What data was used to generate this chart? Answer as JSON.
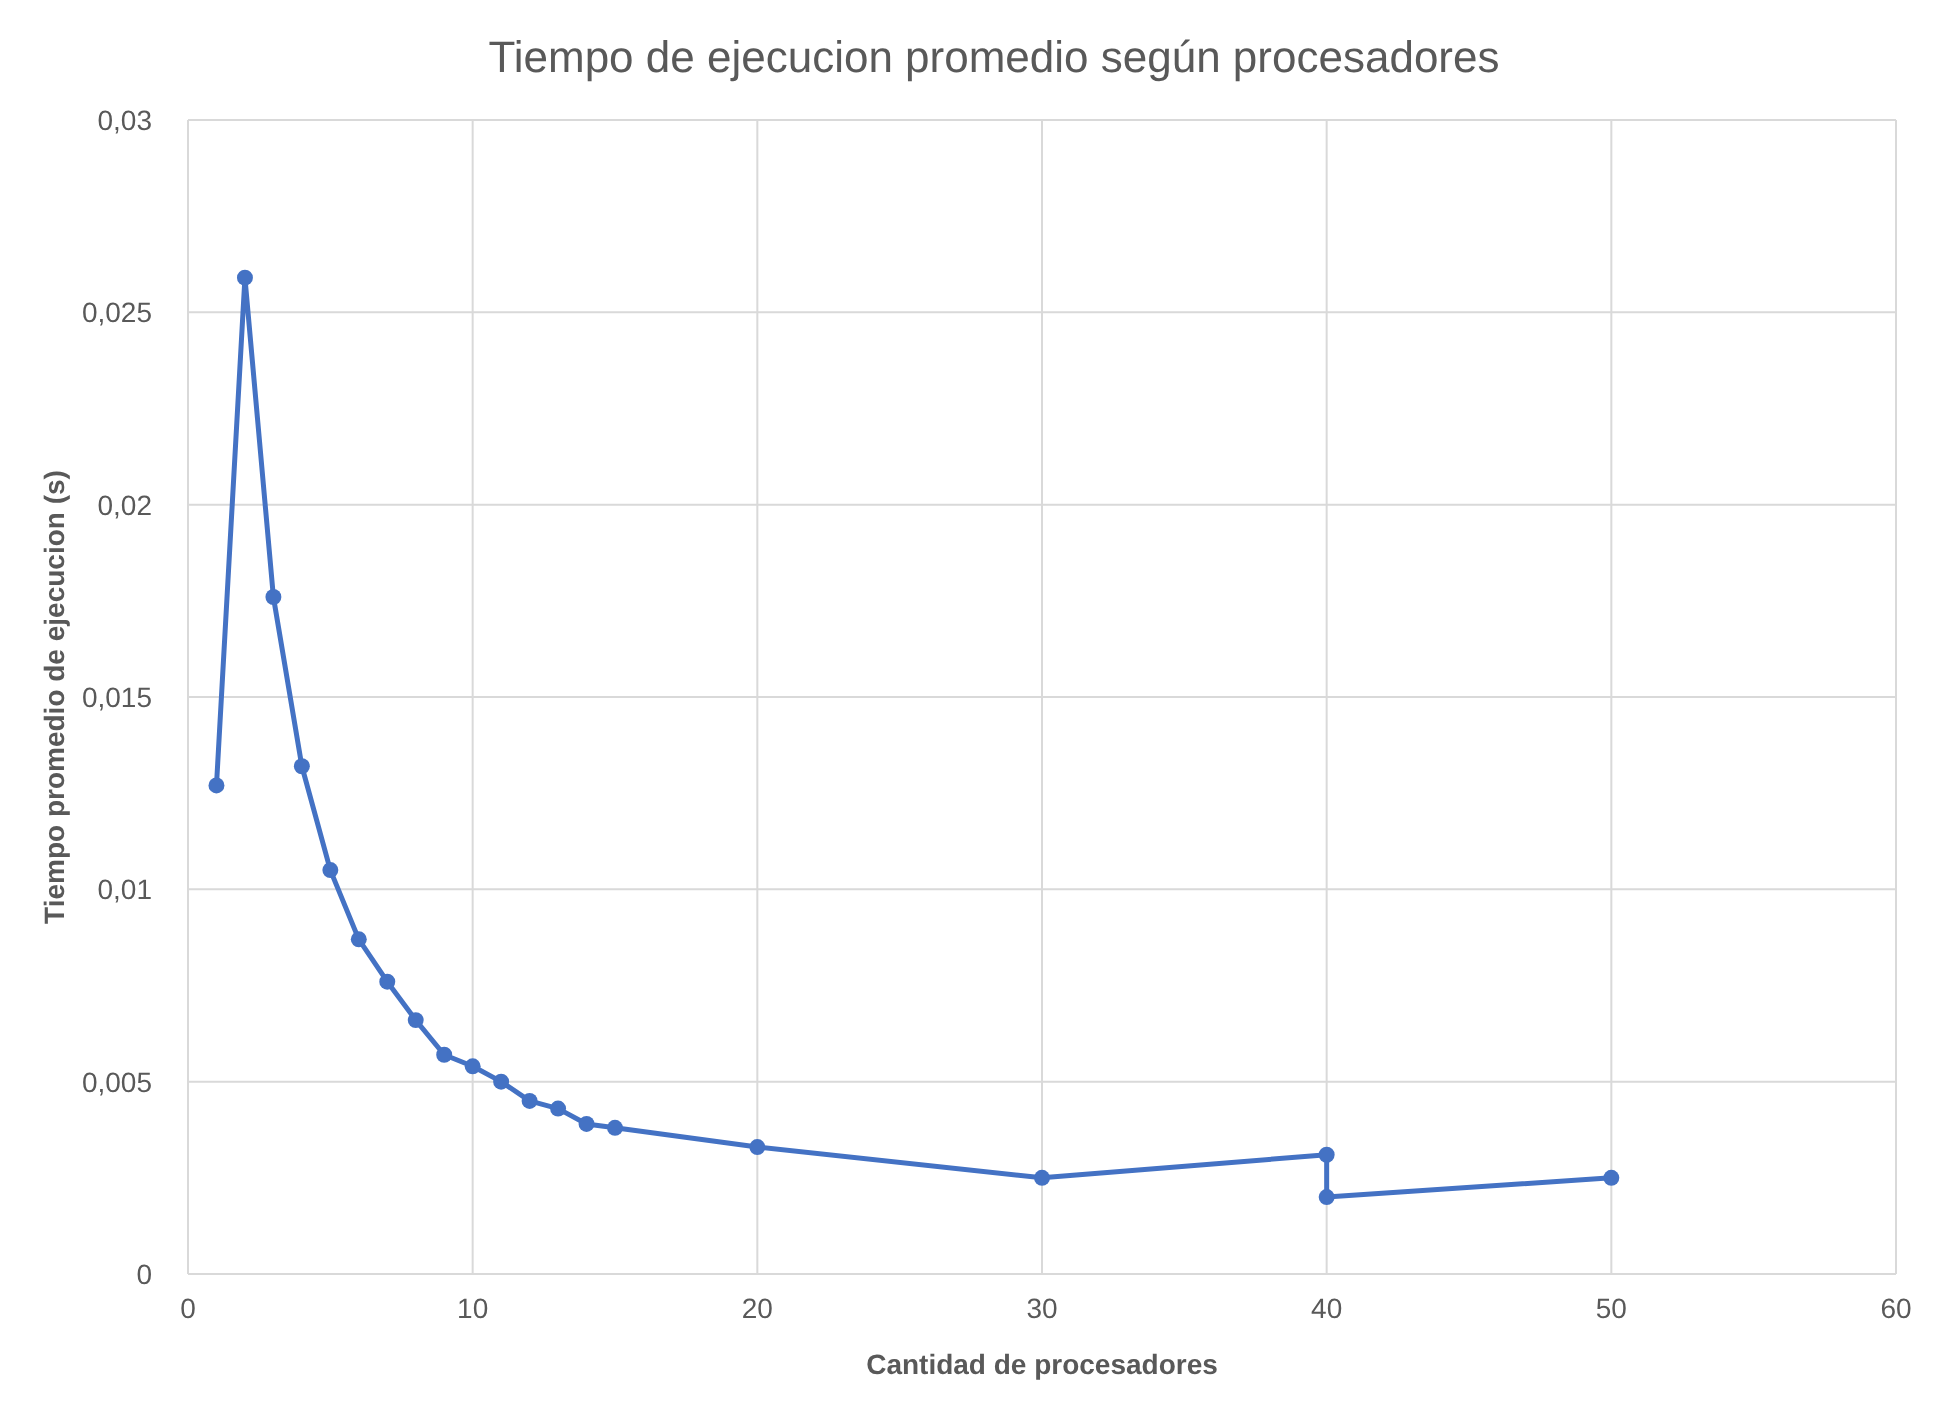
{
  "chart_data": {
    "type": "line",
    "title": "Tiempo de ejecucion promedio según procesadores",
    "xlabel": "Cantidad de procesadores",
    "ylabel": "Tiempo promedio de ejecucion (s)",
    "x": [
      1,
      2,
      3,
      4,
      5,
      6,
      7,
      8,
      9,
      10,
      11,
      12,
      13,
      14,
      15,
      20,
      30,
      40,
      40,
      50
    ],
    "series": [
      {
        "color": "#4472c4",
        "values": [
          0.0127,
          0.0259,
          0.0176,
          0.0132,
          0.0105,
          0.0087,
          0.0076,
          0.0066,
          0.0057,
          0.0054,
          0.005,
          0.0045,
          0.0043,
          0.0039,
          0.0038,
          0.0033,
          0.0025,
          0.0031,
          0.002,
          0.0025
        ]
      }
    ],
    "xlim": [
      0,
      60
    ],
    "xticks": [
      0,
      10,
      20,
      30,
      40,
      50,
      60
    ],
    "ylim": [
      0,
      0.03
    ],
    "yticks": [
      0,
      {
        "value": 0.005,
        "label": "0,005"
      },
      {
        "value": 0.01,
        "label": "0,01"
      },
      {
        "value": 0.015,
        "label": "0,015"
      },
      {
        "value": 0.02,
        "label": "0,02"
      },
      {
        "value": 0.025,
        "label": "0,025"
      },
      {
        "value": 0.03,
        "label": "0,03"
      }
    ],
    "grid": true,
    "marker": "circle",
    "line_style": "solid"
  }
}
